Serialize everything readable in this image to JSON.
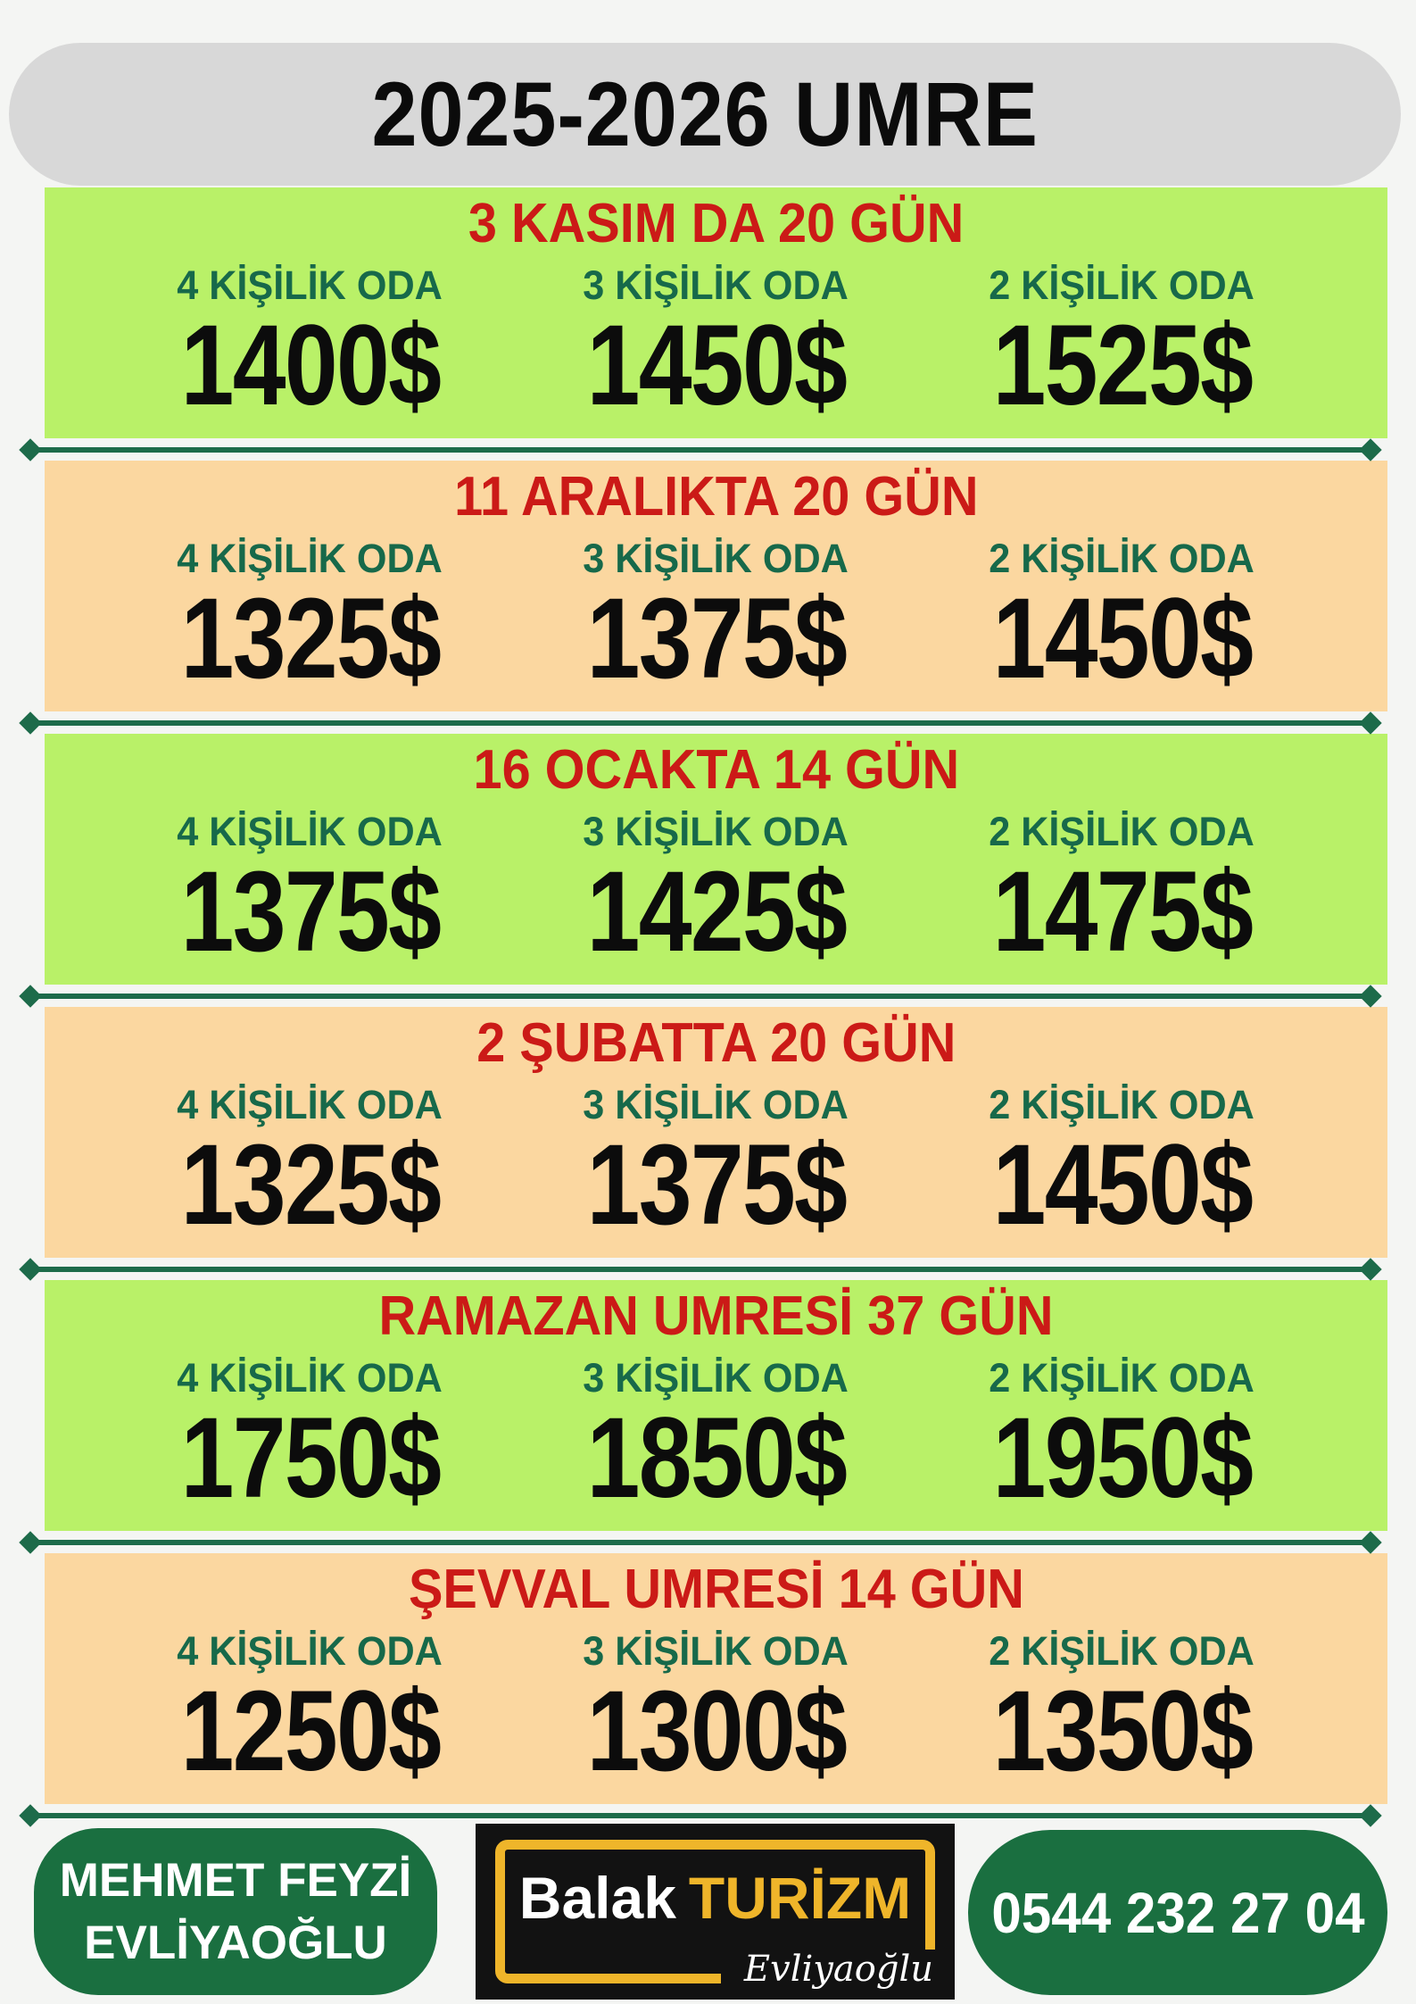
{
  "header": {
    "title": "2025-2026 UMRE"
  },
  "room_labels": [
    "4 KİŞİLİK ODA",
    "3 KİŞİLİK ODA",
    "2 KİŞİLİK ODA"
  ],
  "sections": [
    {
      "title": "3 KASIM DA 20 GÜN",
      "bg": "green",
      "prices": [
        "1400$",
        "1450$",
        "1525$"
      ]
    },
    {
      "title": "11 ARALIKTA 20 GÜN",
      "bg": "peach",
      "prices": [
        "1325$",
        "1375$",
        "1450$"
      ]
    },
    {
      "title": "16 OCAKTA 14 GÜN",
      "bg": "green",
      "prices": [
        "1375$",
        "1425$",
        "1475$"
      ]
    },
    {
      "title": "2 ŞUBATTA 20 GÜN",
      "bg": "peach",
      "prices": [
        "1325$",
        "1375$",
        "1450$"
      ]
    },
    {
      "title": "RAMAZAN UMRESİ 37 GÜN",
      "bg": "green",
      "prices": [
        "1750$",
        "1850$",
        "1950$"
      ]
    },
    {
      "title": "ŞEVVAL UMRESİ 14 GÜN",
      "bg": "peach",
      "prices": [
        "1250$",
        "1300$",
        "1350$"
      ]
    }
  ],
  "footer": {
    "contact_name_line1": "MEHMET FEYZİ",
    "contact_name_line2": "EVLİYAOĞLU",
    "logo": {
      "brand_first": "Balak",
      "brand_second": "TURİZM",
      "signature": "Evliyaoğlu"
    },
    "phone": "0544 232 27 04"
  },
  "colors": {
    "section_green": "#b9f168",
    "section_peach": "#fbd7a0",
    "title_red": "#cb1a17",
    "label_green": "#17694a",
    "divider_green": "#1d6b4a",
    "pill_green": "#1a6f40",
    "brand_gold": "#efb52a",
    "header_gray": "#d8d8d8",
    "page_background": "#f4f5f3"
  }
}
